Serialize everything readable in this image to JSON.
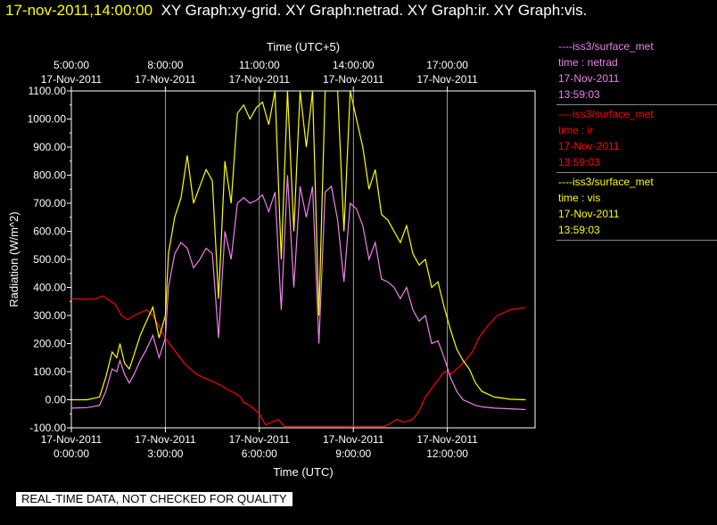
{
  "title": {
    "date": "17-nov-2011,14:00:00",
    "rest": "XY Graph:xy-grid.  XY Graph:netrad.  XY Graph:ir.  XY Graph:vis."
  },
  "colors": {
    "netrad": "#ee82ee",
    "ir": "#ff0000",
    "vis": "#ffff00",
    "grid": "#ffffff"
  },
  "legend": [
    {
      "key": "netrad",
      "source": "----iss3/surface_met",
      "var": "time : netrad",
      "date": "17-Nov-2011",
      "time": "13:59:03"
    },
    {
      "key": "ir",
      "source": "----iss3/surface_met",
      "var": "time : ir",
      "date": "17-Nov-2011",
      "time": "13:59:03"
    },
    {
      "key": "vis",
      "source": "----iss3/surface_met",
      "var": "time : vis",
      "date": "17-Nov-2011",
      "time": "13:59:03"
    }
  ],
  "quality_note": "REAL-TIME DATA, NOT CHECKED FOR QUALITY",
  "chart_data": {
    "type": "line",
    "xlabel": "Time (UTC)",
    "x2label": "Time (UTC+5)",
    "ylabel": "Radiation (W/m^2)",
    "xlim": [
      0,
      14.8
    ],
    "ylim": [
      -100,
      1100
    ],
    "grid": true,
    "yticks": [
      {
        "v": 1100,
        "label": "1100.00"
      },
      {
        "v": 1000,
        "label": "1000.00"
      },
      {
        "v": 900,
        "label": "900.00"
      },
      {
        "v": 800,
        "label": "800.00"
      },
      {
        "v": 700,
        "label": "700.00"
      },
      {
        "v": 600,
        "label": "600.00"
      },
      {
        "v": 500,
        "label": "500.00"
      },
      {
        "v": 400,
        "label": "400.00"
      },
      {
        "v": 300,
        "label": "300.00"
      },
      {
        "v": 200,
        "label": "200.00"
      },
      {
        "v": 100,
        "label": "100.00"
      },
      {
        "v": 0,
        "label": "0.00"
      },
      {
        "v": -100,
        "label": "-100.00"
      }
    ],
    "xticks_bottom": [
      {
        "v": 0,
        "date": "17-Nov-2011",
        "time": "0:00:00"
      },
      {
        "v": 3,
        "date": "17-Nov-2011",
        "time": "3:00:00"
      },
      {
        "v": 6,
        "date": "17-Nov-2011",
        "time": "6:00:00"
      },
      {
        "v": 9,
        "date": "17-Nov-2011",
        "time": "9:00:00"
      },
      {
        "v": 12,
        "date": "17-Nov-2011",
        "time": "12:00:00"
      }
    ],
    "xticks_top": [
      {
        "v": 0,
        "time": "5:00:00",
        "date": "17-Nov-2011"
      },
      {
        "v": 3,
        "time": "8:00:00",
        "date": "17-Nov-2011"
      },
      {
        "v": 6,
        "time": "11:00:00",
        "date": "17-Nov-2011"
      },
      {
        "v": 9,
        "time": "14:00:00",
        "date": "17-Nov-2011"
      },
      {
        "v": 12,
        "time": "17:00:00",
        "date": "17-Nov-2011"
      }
    ],
    "series": [
      {
        "key": "ir",
        "x": [
          0,
          0.5,
          0.8,
          1.0,
          1.2,
          1.4,
          1.6,
          1.8,
          2.0,
          2.2,
          2.4,
          2.6,
          2.8,
          3.0,
          3.2,
          3.4,
          3.6,
          3.8,
          4.0,
          4.2,
          4.4,
          4.6,
          4.8,
          5.0,
          5.2,
          5.4,
          5.5,
          5.7,
          5.9,
          6.0,
          6.2,
          6.4,
          6.6,
          6.8,
          7.0,
          7.5,
          8.0,
          8.5,
          9.0,
          9.5,
          10.0,
          10.4,
          10.6,
          10.9,
          11.1,
          11.3,
          11.5,
          11.7,
          11.9,
          12.1,
          12.3,
          12.5,
          12.8,
          13.0,
          13.3,
          13.6,
          14.0,
          14.3,
          14.5
        ],
        "y": [
          360,
          358,
          360,
          370,
          355,
          340,
          300,
          285,
          300,
          310,
          320,
          300,
          260,
          220,
          190,
          160,
          130,
          110,
          90,
          80,
          70,
          60,
          50,
          35,
          25,
          10,
          -10,
          -20,
          -40,
          -50,
          -90,
          -80,
          -70,
          -95,
          -95,
          -95,
          -95,
          -95,
          -95,
          -95,
          -95,
          -70,
          -80,
          -70,
          -40,
          10,
          40,
          70,
          100,
          90,
          110,
          130,
          170,
          220,
          265,
          300,
          320,
          325,
          328
        ]
      },
      {
        "key": "vis",
        "x": [
          0,
          0.5,
          0.9,
          1.1,
          1.3,
          1.45,
          1.55,
          1.7,
          1.85,
          2.0,
          2.2,
          2.4,
          2.6,
          2.8,
          3.0,
          3.1,
          3.3,
          3.5,
          3.7,
          3.9,
          4.1,
          4.3,
          4.5,
          4.7,
          4.9,
          5.1,
          5.3,
          5.5,
          5.7,
          5.9,
          6.1,
          6.3,
          6.5,
          6.7,
          6.9,
          7.1,
          7.3,
          7.5,
          7.7,
          7.9,
          8.1,
          8.3,
          8.5,
          8.7,
          8.9,
          9.1,
          9.3,
          9.5,
          9.7,
          9.9,
          10.1,
          10.3,
          10.5,
          10.7,
          10.9,
          11.1,
          11.3,
          11.5,
          11.7,
          11.9,
          12.1,
          12.3,
          12.5,
          12.7,
          12.9,
          13.1,
          13.5,
          14.0,
          14.5
        ],
        "y": [
          0,
          0,
          10,
          80,
          170,
          150,
          200,
          130,
          110,
          160,
          230,
          280,
          330,
          220,
          300,
          520,
          650,
          720,
          870,
          700,
          760,
          820,
          780,
          360,
          850,
          700,
          1020,
          1050,
          1000,
          1040,
          1060,
          980,
          1100,
          500,
          1100,
          600,
          1100,
          900,
          1100,
          300,
          1100,
          1100,
          1100,
          600,
          1100,
          1000,
          900,
          750,
          820,
          660,
          640,
          600,
          560,
          620,
          520,
          480,
          500,
          400,
          420,
          330,
          250,
          180,
          140,
          110,
          60,
          30,
          10,
          2,
          0
        ]
      },
      {
        "key": "netrad",
        "x": [
          0,
          0.5,
          0.9,
          1.1,
          1.3,
          1.45,
          1.55,
          1.7,
          1.85,
          2.0,
          2.2,
          2.4,
          2.6,
          2.8,
          3.0,
          3.1,
          3.3,
          3.5,
          3.7,
          3.9,
          4.1,
          4.3,
          4.5,
          4.7,
          4.9,
          5.1,
          5.3,
          5.5,
          5.7,
          5.9,
          6.1,
          6.3,
          6.5,
          6.7,
          6.9,
          7.1,
          7.3,
          7.5,
          7.7,
          7.9,
          8.1,
          8.3,
          8.5,
          8.7,
          8.9,
          9.1,
          9.3,
          9.5,
          9.7,
          9.9,
          10.1,
          10.3,
          10.5,
          10.7,
          10.9,
          11.1,
          11.3,
          11.5,
          11.7,
          11.9,
          12.1,
          12.3,
          12.5,
          12.7,
          12.9,
          13.1,
          13.5,
          14.0,
          14.5
        ],
        "y": [
          -30,
          -28,
          -20,
          30,
          110,
          100,
          140,
          90,
          60,
          90,
          140,
          180,
          230,
          150,
          220,
          400,
          520,
          560,
          540,
          470,
          500,
          540,
          520,
          220,
          600,
          500,
          700,
          720,
          700,
          710,
          730,
          670,
          740,
          320,
          800,
          400,
          760,
          650,
          760,
          200,
          740,
          760,
          640,
          420,
          700,
          680,
          620,
          500,
          560,
          430,
          420,
          400,
          360,
          400,
          320,
          280,
          300,
          200,
          210,
          150,
          80,
          30,
          0,
          -10,
          -20,
          -25,
          -30,
          -32,
          -35
        ]
      }
    ]
  }
}
